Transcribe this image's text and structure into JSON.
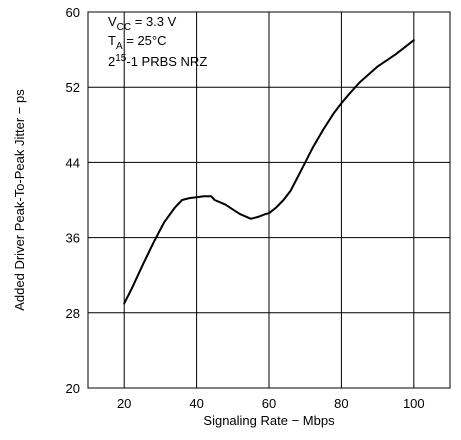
{
  "chart_data": {
    "type": "line",
    "xlabel": "Signaling Rate −  Mbps",
    "ylabel": "Added Driver Peak-To-Peak Jitter − ps",
    "xlim": [
      10,
      110
    ],
    "ylim": [
      20,
      60
    ],
    "xticks": [
      "20",
      "40",
      "60",
      "80",
      "100"
    ],
    "yticks": [
      "20",
      "28",
      "36",
      "44",
      "52",
      "60"
    ],
    "grid": true,
    "annotations": [
      {
        "main": "V",
        "sub": "CC",
        "rest": " = 3.3 V"
      },
      {
        "main": "T",
        "sub": "A",
        "rest": " = 25°C"
      },
      {
        "main": "2",
        "sup": "15",
        "rest": "-1 PRBS NRZ"
      }
    ],
    "series": [
      {
        "color": "#000000",
        "x": [
          20,
          22,
          25,
          28,
          31,
          34,
          36,
          38,
          40,
          42,
          44,
          45,
          48,
          50,
          52,
          55,
          57,
          59,
          60,
          62,
          64,
          66,
          68,
          70,
          72,
          75,
          78,
          80,
          82,
          85,
          90,
          95,
          100
        ],
        "y": [
          29,
          30.5,
          33,
          35.4,
          37.6,
          39.2,
          40,
          40.2,
          40.3,
          40.4,
          40.4,
          40,
          39.5,
          39,
          38.5,
          38,
          38.2,
          38.5,
          38.6,
          39.2,
          40,
          41,
          42.5,
          44,
          45.5,
          47.5,
          49.3,
          50.3,
          51.2,
          52.5,
          54.2,
          55.5,
          57
        ]
      }
    ]
  }
}
